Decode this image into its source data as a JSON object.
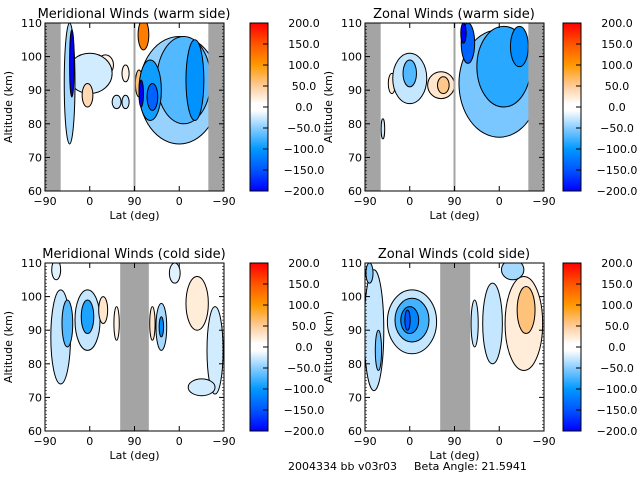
{
  "footer": {
    "run_id": "2004334 bb v03r03",
    "beta_angle_label": "Beta Angle: 21.5941"
  },
  "colorbar": {
    "ticks": [
      "200.0",
      "150.0",
      "100.0",
      "50.0",
      "0.0",
      "-50.0",
      "-100.0",
      "-150.0",
      "-200.0"
    ],
    "range": [
      -200,
      200
    ],
    "colors": [
      {
        "value": -200,
        "color": "#0000ff"
      },
      {
        "value": -150,
        "color": "#0055ff"
      },
      {
        "value": -100,
        "color": "#0099ff"
      },
      {
        "value": -50,
        "color": "#88ccff"
      },
      {
        "value": -10,
        "color": "#ffffff"
      },
      {
        "value": 10,
        "color": "#ffffff"
      },
      {
        "value": 50,
        "color": "#ffcc99"
      },
      {
        "value": 100,
        "color": "#ff9900"
      },
      {
        "value": 150,
        "color": "#ff5500"
      },
      {
        "value": 200,
        "color": "#ff0000"
      }
    ]
  },
  "chart_data": [
    {
      "type": "heatmap",
      "title": "Meridional Winds (warm side)",
      "xlabel": "Lat (deg)",
      "ylabel": "Altitude (km)",
      "xticks": [
        "-90",
        "0",
        "90",
        "0",
        "-90"
      ],
      "yticks": [
        "60",
        "70",
        "80",
        "90",
        "100",
        "110"
      ],
      "ylim": [
        60,
        110
      ],
      "xlim": [
        0,
        4
      ],
      "no_data_bands": [
        [
          0,
          0.35
        ],
        [
          3.65,
          4
        ]
      ],
      "divider": 2,
      "features": [
        {
          "x": 0.55,
          "y": 92,
          "rx": 0.12,
          "ry": 18,
          "value": -40
        },
        {
          "x": 0.6,
          "y": 98,
          "rx": 0.05,
          "ry": 10,
          "value": -210
        },
        {
          "x": 0.95,
          "y": 88.5,
          "rx": 0.12,
          "ry": 3.5,
          "value": 40
        },
        {
          "x": 1.0,
          "y": 95,
          "rx": 0.5,
          "ry": 6,
          "value": -25
        },
        {
          "x": 1.35,
          "y": 97.5,
          "rx": 0.18,
          "ry": 3,
          "value": 20
        },
        {
          "x": 1.6,
          "y": 86.5,
          "rx": 0.1,
          "ry": 2,
          "value": -30
        },
        {
          "x": 1.8,
          "y": 86.5,
          "rx": 0.08,
          "ry": 2,
          "value": -30
        },
        {
          "x": 1.8,
          "y": 95,
          "rx": 0.08,
          "ry": 2.5,
          "value": 20
        },
        {
          "x": 3.0,
          "y": 90,
          "rx": 0.9,
          "ry": 16,
          "value": -45
        },
        {
          "x": 3.1,
          "y": 93,
          "rx": 0.6,
          "ry": 13,
          "value": -70
        },
        {
          "x": 3.35,
          "y": 93,
          "rx": 0.2,
          "ry": 12,
          "value": -105
        },
        {
          "x": 2.35,
          "y": 90,
          "rx": 0.25,
          "ry": 9,
          "value": -95
        },
        {
          "x": 2.4,
          "y": 88,
          "rx": 0.12,
          "ry": 4,
          "value": -140
        },
        {
          "x": 2.2,
          "y": 106.5,
          "rx": 0.12,
          "ry": 4.5,
          "value": 120
        },
        {
          "x": 2.1,
          "y": 92,
          "rx": 0.08,
          "ry": 4,
          "value": 60
        },
        {
          "x": 2.15,
          "y": 89,
          "rx": 0.05,
          "ry": 4,
          "value": -220
        }
      ]
    },
    {
      "type": "heatmap",
      "title": "Zonal Winds (warm side)",
      "xlabel": "Lat (deg)",
      "ylabel": "Altitude (km)",
      "xticks": [
        "-90",
        "0",
        "90",
        "0",
        "-90"
      ],
      "yticks": [
        "60",
        "70",
        "80",
        "90",
        "100",
        "110"
      ],
      "ylim": [
        60,
        110
      ],
      "xlim": [
        0,
        4
      ],
      "no_data_bands": [
        [
          0,
          0.35
        ],
        [
          3.65,
          4
        ]
      ],
      "divider": 2,
      "features": [
        {
          "x": 0.6,
          "y": 92,
          "rx": 0.08,
          "ry": 3,
          "value": 25
        },
        {
          "x": 1.0,
          "y": 93.5,
          "rx": 0.38,
          "ry": 7.5,
          "value": -30
        },
        {
          "x": 1.0,
          "y": 95,
          "rx": 0.15,
          "ry": 4,
          "value": -70
        },
        {
          "x": 1.7,
          "y": 91.5,
          "rx": 0.3,
          "ry": 4,
          "value": 30
        },
        {
          "x": 1.75,
          "y": 91.5,
          "rx": 0.13,
          "ry": 2.5,
          "value": 55
        },
        {
          "x": 0.4,
          "y": 78.5,
          "rx": 0.04,
          "ry": 3,
          "value": -25
        },
        {
          "x": 3.0,
          "y": 92,
          "rx": 0.9,
          "ry": 16,
          "value": -55
        },
        {
          "x": 3.1,
          "y": 97,
          "rx": 0.6,
          "ry": 12,
          "value": -85
        },
        {
          "x": 3.45,
          "y": 103,
          "rx": 0.2,
          "ry": 6,
          "value": -110
        },
        {
          "x": 2.3,
          "y": 104,
          "rx": 0.15,
          "ry": 6,
          "value": -140
        },
        {
          "x": 2.2,
          "y": 107,
          "rx": 0.06,
          "ry": 3,
          "value": -220
        },
        {
          "x": 2.35,
          "y": 88,
          "rx": 0.1,
          "ry": 4,
          "value": 30
        }
      ]
    },
    {
      "type": "heatmap",
      "title": "Meridional Winds (cold side)",
      "xlabel": "Lat (deg)",
      "ylabel": "Altitude (km)",
      "xticks": [
        "-90",
        "0",
        "90",
        "0",
        "-90"
      ],
      "yticks": [
        "60",
        "70",
        "80",
        "90",
        "100",
        "110"
      ],
      "ylim": [
        60,
        110
      ],
      "xlim": [
        0,
        4
      ],
      "no_data_bands": [
        [
          1.68,
          2.32
        ]
      ],
      "features": [
        {
          "x": 0.35,
          "y": 88,
          "rx": 0.22,
          "ry": 14,
          "value": -30
        },
        {
          "x": 0.5,
          "y": 92,
          "rx": 0.12,
          "ry": 7,
          "value": -70
        },
        {
          "x": 0.25,
          "y": 108,
          "rx": 0.1,
          "ry": 3,
          "value": -20
        },
        {
          "x": 0.95,
          "y": 93,
          "rx": 0.28,
          "ry": 9,
          "value": -30
        },
        {
          "x": 0.95,
          "y": 94,
          "rx": 0.14,
          "ry": 5,
          "value": -90
        },
        {
          "x": 1.3,
          "y": 96,
          "rx": 0.1,
          "ry": 4,
          "value": 30
        },
        {
          "x": 1.6,
          "y": 92,
          "rx": 0.06,
          "ry": 5,
          "value": 20
        },
        {
          "x": 2.4,
          "y": 92,
          "rx": 0.06,
          "ry": 5,
          "value": 30
        },
        {
          "x": 2.6,
          "y": 91,
          "rx": 0.12,
          "ry": 7,
          "value": -40
        },
        {
          "x": 2.6,
          "y": 91,
          "rx": 0.05,
          "ry": 3,
          "value": -110
        },
        {
          "x": 3.4,
          "y": 98,
          "rx": 0.25,
          "ry": 8,
          "value": 25
        },
        {
          "x": 2.9,
          "y": 107,
          "rx": 0.12,
          "ry": 3,
          "value": -20
        },
        {
          "x": 3.8,
          "y": 84,
          "rx": 0.18,
          "ry": 13,
          "value": -25
        },
        {
          "x": 3.5,
          "y": 73,
          "rx": 0.3,
          "ry": 2.5,
          "value": -25
        }
      ]
    },
    {
      "type": "heatmap",
      "title": "Zonal Winds (cold side)",
      "xlabel": "Lat (deg)",
      "ylabel": "Altitude (km)",
      "xticks": [
        "-90",
        "0",
        "90",
        "0",
        "-90"
      ],
      "yticks": [
        "60",
        "70",
        "80",
        "90",
        "100",
        "110"
      ],
      "ylim": [
        60,
        110
      ],
      "xlim": [
        0,
        4
      ],
      "no_data_bands": [
        [
          1.68,
          2.35
        ]
      ],
      "features": [
        {
          "x": 0.2,
          "y": 90,
          "rx": 0.22,
          "ry": 18,
          "value": -30
        },
        {
          "x": 0.3,
          "y": 84,
          "rx": 0.07,
          "ry": 6,
          "value": -60
        },
        {
          "x": 0.1,
          "y": 107,
          "rx": 0.08,
          "ry": 3,
          "value": -50
        },
        {
          "x": 1.05,
          "y": 92.5,
          "rx": 0.55,
          "ry": 9.5,
          "value": -30
        },
        {
          "x": 1.05,
          "y": 93,
          "rx": 0.38,
          "ry": 6.5,
          "value": -75
        },
        {
          "x": 1.0,
          "y": 93,
          "rx": 0.2,
          "ry": 4,
          "value": -115
        },
        {
          "x": 0.95,
          "y": 93,
          "rx": 0.06,
          "ry": 3,
          "value": -150
        },
        {
          "x": 2.45,
          "y": 92,
          "rx": 0.08,
          "ry": 7,
          "value": -30
        },
        {
          "x": 2.85,
          "y": 92,
          "rx": 0.22,
          "ry": 12,
          "value": -30
        },
        {
          "x": 3.55,
          "y": 92,
          "rx": 0.42,
          "ry": 14,
          "value": 25
        },
        {
          "x": 3.6,
          "y": 96,
          "rx": 0.2,
          "ry": 7,
          "value": 60
        },
        {
          "x": 3.3,
          "y": 108,
          "rx": 0.25,
          "ry": 3,
          "value": -40
        }
      ]
    }
  ]
}
